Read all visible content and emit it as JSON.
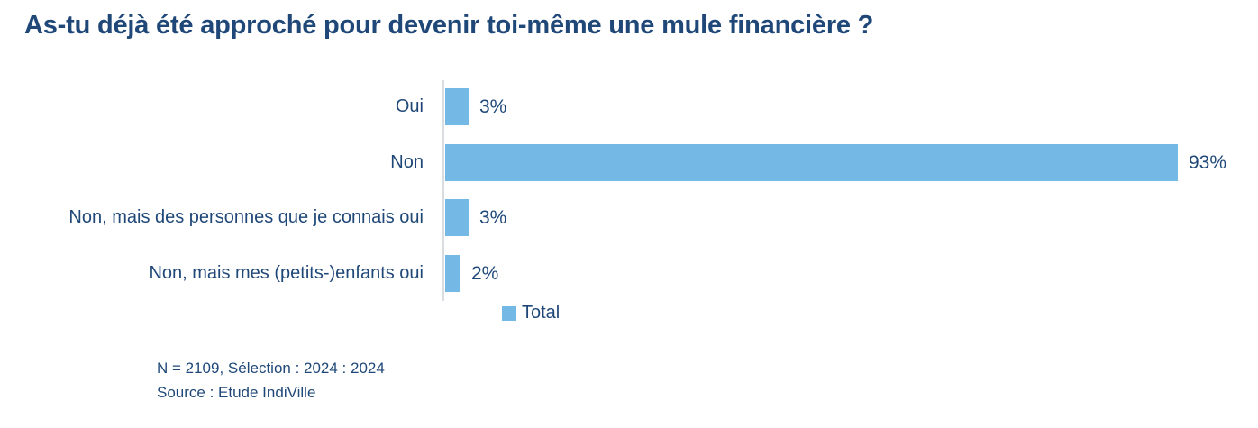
{
  "title": "As-tu déjà été approché pour devenir toi-même une mule financière ?",
  "chart_data": {
    "type": "bar",
    "orientation": "horizontal",
    "title": "As-tu déjà été approché pour devenir toi-même une mule financière ?",
    "categories": [
      "Oui",
      "Non",
      "Non, mais des personnes que je connais oui",
      "Non, mais mes (petits-)enfants oui"
    ],
    "series": [
      {
        "name": "Total",
        "values": [
          3,
          93,
          3,
          2
        ]
      }
    ],
    "value_labels": [
      "3%",
      "93%",
      "3%",
      "2%"
    ],
    "xlim": [
      0,
      100
    ],
    "grid": false,
    "legend": {
      "label": "Total",
      "position": "bottom"
    },
    "colors": {
      "bar": "#74B9E5",
      "axis_line": "#D9DDE2",
      "text": "#1F4878"
    }
  },
  "footer": {
    "line1": "N = 2109, Sélection : 2024 : 2024",
    "line2": "Source : Etude IndiVille"
  }
}
